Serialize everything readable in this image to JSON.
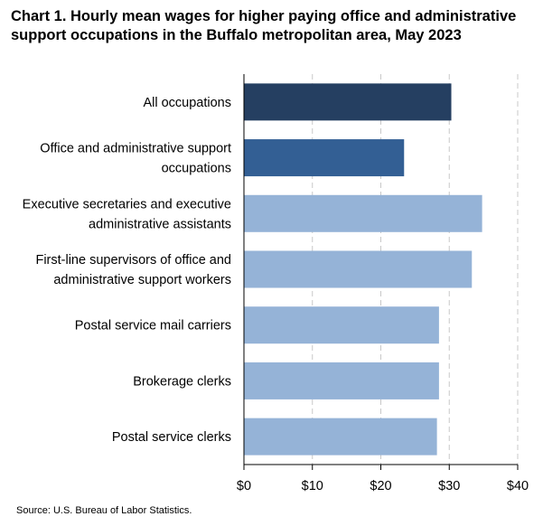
{
  "chart_data": {
    "type": "bar",
    "orientation": "horizontal",
    "title": "Chart 1. Hourly mean wages for higher paying office and administrative support occupations in the Buffalo metropolitan area, May 2023",
    "categories": [
      "All occupations",
      "Office and administrative support occupations",
      "Executive secretaries and executive administrative assistants",
      "First-line supervisors of office and administrative support workers",
      "Postal service mail carriers",
      "Brokerage clerks",
      "Postal service clerks"
    ],
    "category_lines": [
      [
        "All occupations"
      ],
      [
        "Office and administrative support",
        "occupations"
      ],
      [
        "Executive secretaries and executive",
        "administrative assistants"
      ],
      [
        "First-line supervisors of office and",
        "administrative support workers"
      ],
      [
        "Postal service mail carriers"
      ],
      [
        "Brokerage clerks"
      ],
      [
        "Postal service clerks"
      ]
    ],
    "values": [
      30.3,
      23.4,
      34.8,
      33.3,
      28.5,
      28.5,
      28.2
    ],
    "bar_colors": [
      "#253F61",
      "#335F94",
      "#95B3D7",
      "#95B3D7",
      "#95B3D7",
      "#95B3D7",
      "#95B3D7"
    ],
    "xlim": [
      0,
      40
    ],
    "xticks": [
      0,
      10,
      20,
      30,
      40
    ],
    "xtick_labels": [
      "$0",
      "$10",
      "$20",
      "$30",
      "$40"
    ],
    "xlabel": "",
    "ylabel": "",
    "grid": "vertical dashed",
    "legend": "none"
  },
  "source": "Source: U.S. Bureau of Labor Statistics."
}
